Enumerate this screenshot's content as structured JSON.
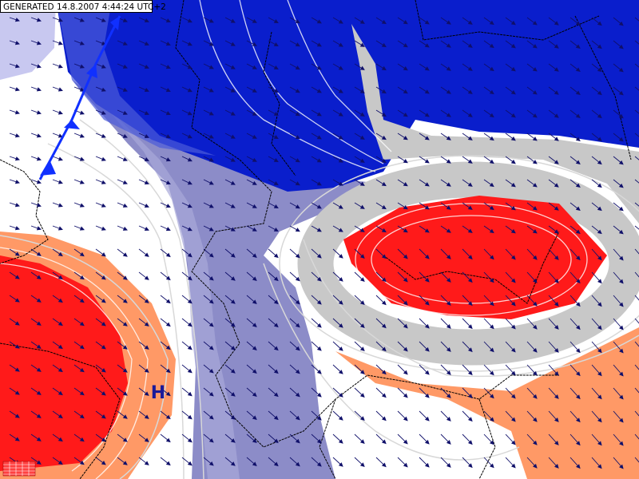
{
  "header": {
    "generated": "GENERATED 14.8.2007 4:44:24 UTC+2"
  },
  "labels": {
    "high": "H"
  }
}
